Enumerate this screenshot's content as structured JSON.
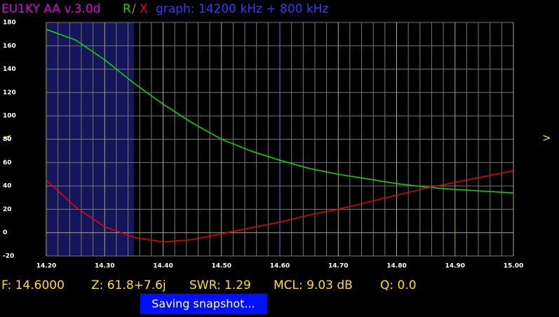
{
  "header": {
    "device": "EU1KY AA v.3.0d",
    "separator": "/",
    "graph_info": "graph: 14200 kHz + 800 kHz",
    "left_arrow": "<",
    "right_arrow": ">"
  },
  "chart_data": {
    "type": "line",
    "x": [
      14.2,
      14.25,
      14.3,
      14.35,
      14.4,
      14.45,
      14.5,
      14.55,
      14.6,
      14.65,
      14.7,
      14.75,
      14.8,
      14.85,
      14.9,
      14.95,
      15.0
    ],
    "series": [
      {
        "name": "R",
        "color": "#00e000",
        "values": [
          174,
          165,
          148,
          128,
          110,
          94,
          80,
          70,
          62,
          55,
          50,
          46,
          42,
          39,
          37,
          35.5,
          34
        ]
      },
      {
        "name": "X",
        "color": "#ee0000",
        "values": [
          45,
          22,
          5,
          -4,
          -8,
          -6,
          -1,
          4,
          9,
          15,
          20,
          26,
          32,
          38,
          43,
          48,
          53
        ]
      }
    ],
    "xlim": [
      14.2,
      15.0
    ],
    "xticks": [
      {
        "value": 14.2,
        "label": "14.20"
      },
      {
        "value": 14.3,
        "label": "14.30"
      },
      {
        "value": 14.4,
        "label": "14.40"
      },
      {
        "value": 14.5,
        "label": "14.50"
      },
      {
        "value": 14.6,
        "label": "14.60"
      },
      {
        "value": 14.7,
        "label": "14.70"
      },
      {
        "value": 14.8,
        "label": "14.80"
      },
      {
        "value": 14.9,
        "label": "14.90"
      },
      {
        "value": 15.0,
        "label": "15.00"
      }
    ],
    "ylim": [
      -20,
      180
    ],
    "yticks": [
      -20,
      0,
      20,
      40,
      60,
      80,
      100,
      120,
      140,
      160,
      180
    ],
    "grid": true,
    "highlight_band": [
      14.2,
      14.35
    ],
    "cursor_x": 14.6
  },
  "status": {
    "frequency": "F: 14.6000",
    "impedance": "Z: 61.8+7.6j",
    "swr": "SWR: 1.29",
    "mcl": "MCL: 9.03 dB",
    "q": "Q: 0.0"
  },
  "toast": "Saving snapshot..."
}
